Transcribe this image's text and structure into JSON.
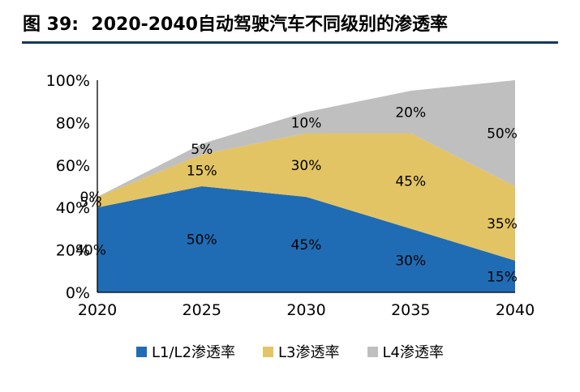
{
  "title": "图 39:  2020-2040自动驾驶汽车不同级别的渗透率",
  "colors": {
    "title_rule": "#17375E",
    "axis": "#000000",
    "background": "#FFFFFF",
    "label_text": "#000000"
  },
  "chart_data": {
    "type": "area",
    "stacked": true,
    "title": "图 39:  2020-2040自动驾驶汽车不同级别的渗透率",
    "xlabel": "",
    "ylabel": "",
    "categories": [
      "2020",
      "2025",
      "2030",
      "2035",
      "2040"
    ],
    "series": [
      {
        "key": "l1-l2",
        "name": "L1/L2渗透率",
        "color": "#1F6CB4",
        "values": [
          40,
          50,
          45,
          30,
          15
        ]
      },
      {
        "key": "l3",
        "name": "L3渗透率",
        "color": "#E2C464",
        "values": [
          5,
          15,
          30,
          45,
          35
        ]
      },
      {
        "key": "l4",
        "name": "L4渗透率",
        "color": "#BFBFBF",
        "values": [
          0,
          5,
          10,
          20,
          50
        ]
      }
    ],
    "ylim": [
      0,
      100
    ],
    "ytick_step": 20,
    "ytick_labels": [
      "0%",
      "20%",
      "40%",
      "60%",
      "80%",
      "100%"
    ],
    "data_label_suffix": "%",
    "legend_position": "bottom",
    "grid": false
  }
}
